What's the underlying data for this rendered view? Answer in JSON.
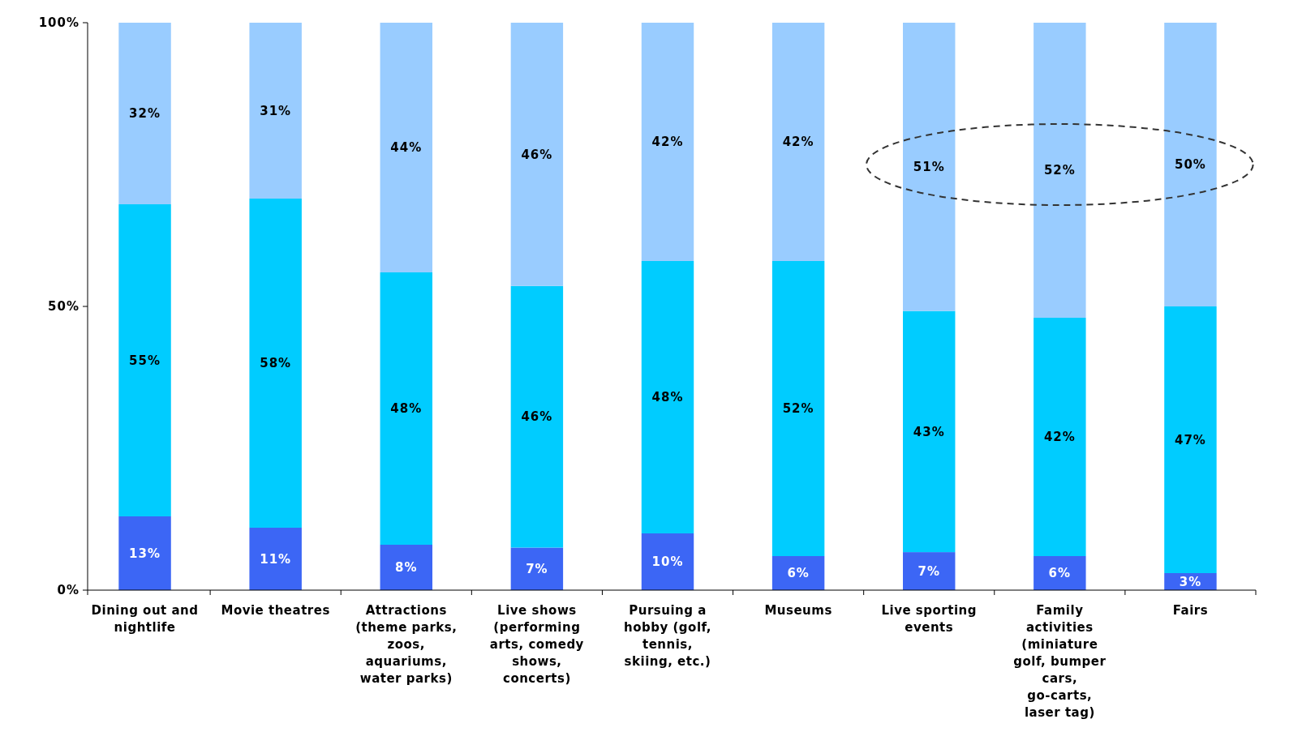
{
  "chart_data": {
    "type": "bar",
    "stacked": true,
    "categories": [
      "Dining out and nightlife",
      "Movie theatres",
      "Attractions (theme parks, zoos, aquariums, water parks)",
      "Live shows (performing arts, comedy shows, concerts)",
      "Pursuing a hobby (golf, tennis, skiing, etc.)",
      "Museums",
      "Live sporting events",
      "Family activities (miniature golf, bumper cars, go-carts, laser tag)",
      "Fairs"
    ],
    "series": [
      {
        "color": "#3c66f5",
        "values": [
          13,
          11,
          8,
          7.5,
          10,
          6,
          6.7,
          6,
          3
        ],
        "value_labels": [
          "13%",
          "11%",
          "8%",
          "7%",
          "10%",
          "6%",
          "7%",
          "6%",
          "3%"
        ]
      },
      {
        "color": "#00ccff",
        "values": [
          55,
          58,
          48,
          46.1,
          48,
          52,
          42.5,
          42,
          47
        ],
        "value_labels": [
          "55%",
          "58%",
          "48%",
          "46%",
          "48%",
          "52%",
          "43%",
          "42%",
          "47%"
        ]
      },
      {
        "color": "#99ccff",
        "values": [
          32,
          31,
          44,
          46.4,
          42,
          42,
          50.8,
          52,
          50
        ],
        "value_labels": [
          "32%",
          "31%",
          "44%",
          "46%",
          "42%",
          "42%",
          "51%",
          "52%",
          "50%"
        ]
      }
    ],
    "ylim": [
      0,
      100
    ],
    "yticks": [
      {
        "value": 0,
        "label": "0%"
      },
      {
        "value": 50,
        "label": "50%"
      },
      {
        "value": 100,
        "label": "100%"
      }
    ]
  }
}
